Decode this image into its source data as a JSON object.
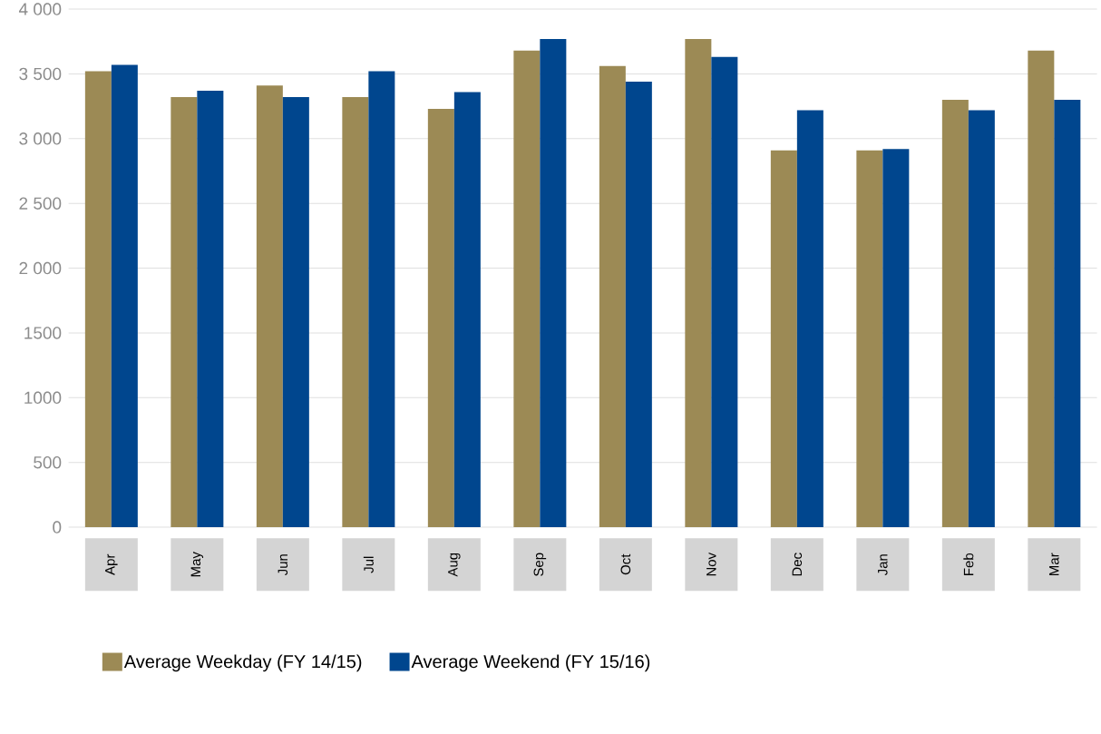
{
  "chart_data": {
    "type": "bar",
    "categories": [
      "Apr",
      "May",
      "Jun",
      "Jul",
      "Aug",
      "Sep",
      "Oct",
      "Nov",
      "Dec",
      "Jan",
      "Feb",
      "Mar"
    ],
    "series": [
      {
        "name": "Average Weekday (FY 14/15)",
        "color": "#9c8a55",
        "values": [
          3520,
          3320,
          3410,
          3320,
          3230,
          3680,
          3560,
          3770,
          2910,
          2910,
          3300,
          3680
        ]
      },
      {
        "name": "Average Weekend (FY 15/16)",
        "color": "#00468e",
        "values": [
          3570,
          3370,
          3320,
          3520,
          3360,
          3770,
          3440,
          3630,
          3220,
          2920,
          3220,
          3300
        ]
      }
    ],
    "ylim": [
      0,
      4000
    ],
    "yticks": [
      0,
      500,
      1000,
      1500,
      {
        "value": 2000,
        "label": "2 000"
      },
      {
        "value": 2500,
        "label": "2 500"
      },
      {
        "value": 3000,
        "label": "3 000"
      },
      {
        "value": 3500,
        "label": "3 500"
      },
      {
        "value": 4000,
        "label": "4 000"
      }
    ],
    "grid": "y",
    "legend": "bottom"
  }
}
